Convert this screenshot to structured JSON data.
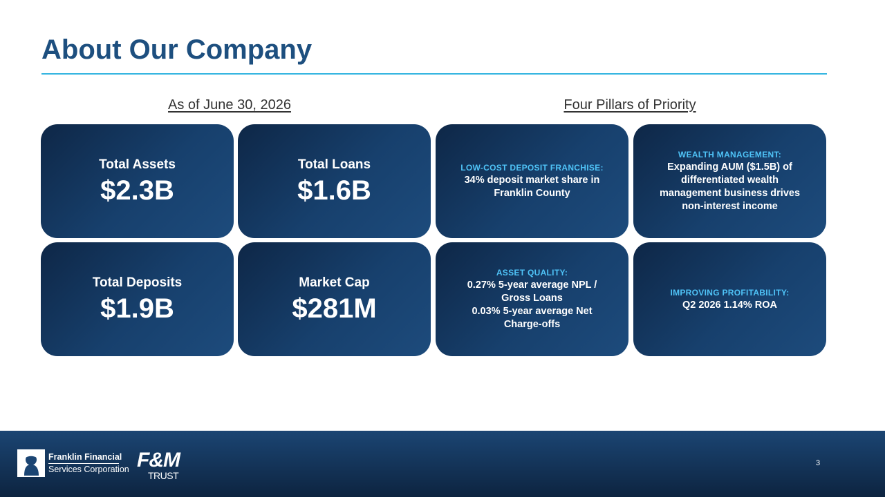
{
  "slide": {
    "title": "About Our Company",
    "left_heading": "As of June 30, 2026",
    "right_heading": "Four Pillars of Priority",
    "page_number": "3"
  },
  "metrics": [
    {
      "label": "Total Assets",
      "value": "$2.3B"
    },
    {
      "label": "Total Loans",
      "value": "$1.6B"
    },
    {
      "label": "Total Deposits",
      "value": "$1.9B"
    },
    {
      "label": "Market Cap",
      "value": "$281M"
    }
  ],
  "pillars": [
    {
      "head": "LOW-COST DEPOSIT FRANCHISE:",
      "body": [
        "34% deposit market share in",
        "Franklin County"
      ]
    },
    {
      "head": "WEALTH MANAGEMENT:",
      "body": [
        "Expanding AUM ($1.5B) of",
        "differentiated wealth",
        "management business drives",
        "non-interest income"
      ]
    },
    {
      "head": "ASSET QUALITY:",
      "body": [
        "0.27% 5-year average NPL /",
        "Gross Loans",
        "0.03% 5-year average Net",
        "Charge-offs"
      ]
    },
    {
      "head": "IMPROVING PROFITABILITY:",
      "body": [
        "Q2 2026 1.14% ROA"
      ]
    }
  ],
  "footer": {
    "logo1_line1": "Franklin Financial",
    "logo1_line2": "Services Corporation",
    "logo2_mark": "F&M",
    "logo2_text": "TRUST"
  },
  "colors": {
    "title": "#1d4f7f",
    "rule": "#33b4e0",
    "tile": "#17406d",
    "pillar_head": "#4fc3f7",
    "footer": "#1b4573"
  }
}
